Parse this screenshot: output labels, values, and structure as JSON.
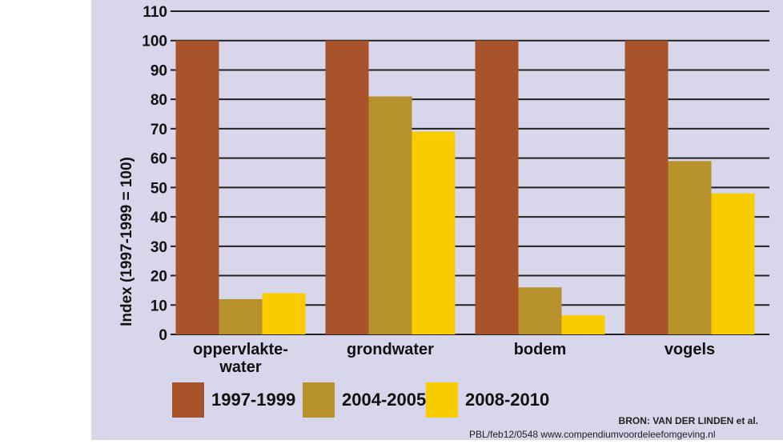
{
  "chart_data": {
    "type": "bar",
    "title": "",
    "xlabel": "",
    "ylabel": "Index (1997-1999 = 100)",
    "ylim": [
      0,
      110
    ],
    "yticks": [
      0,
      10,
      20,
      30,
      40,
      50,
      60,
      70,
      80,
      90,
      100,
      110
    ],
    "grid": true,
    "legend_position": "bottom",
    "categories": [
      [
        "oppervlakte-",
        "water"
      ],
      [
        "grondwater"
      ],
      [
        "bodem"
      ],
      [
        "vogels"
      ]
    ],
    "series": [
      {
        "name": "1997-1999",
        "color": "#a8532a",
        "values": [
          100,
          100,
          100,
          100
        ]
      },
      {
        "name": "2004-2005",
        "color": "#b7922c",
        "values": [
          12,
          81,
          16,
          59
        ]
      },
      {
        "name": "2008-2010",
        "color": "#f9cc00",
        "values": [
          14,
          69,
          6.5,
          48
        ]
      }
    ]
  },
  "source": {
    "line1": "BRON: VAN DER LINDEN et al.",
    "line2": "PBL/feb12/0548 www.compendiumvoordeleefomgeving.nl"
  }
}
